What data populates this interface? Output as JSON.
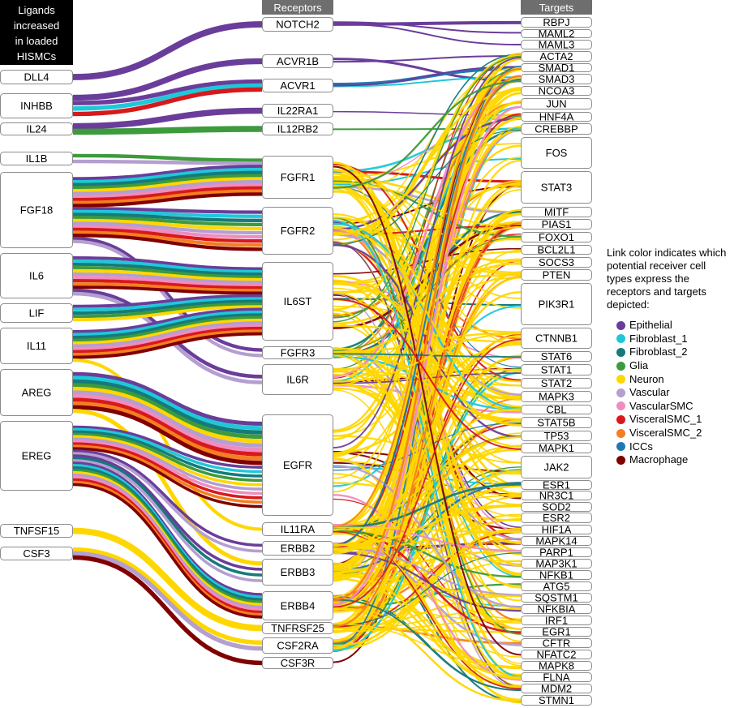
{
  "headers": {
    "ligands": [
      "Ligands",
      "increased",
      "in loaded",
      "HISMCs"
    ],
    "receptors": "Receptors",
    "targets": "Targets"
  },
  "legend": {
    "title": "Link color indicates which potential receiver cell types express the receptors and targets depicted:",
    "items": [
      {
        "label": "Epithelial",
        "color": "#6a3d9a"
      },
      {
        "label": "Fibroblast_1",
        "color": "#1fc8d8"
      },
      {
        "label": "Fibroblast_2",
        "color": "#167a7a"
      },
      {
        "label": "Glia",
        "color": "#3d9a3d"
      },
      {
        "label": "Neuron",
        "color": "#ffd700"
      },
      {
        "label": "Vascular",
        "color": "#b49fd0"
      },
      {
        "label": "VascularSMC",
        "color": "#f08cbf"
      },
      {
        "label": "VisceralSMC_1",
        "color": "#d7191c"
      },
      {
        "label": "VisceralSMC_2",
        "color": "#f47f20"
      },
      {
        "label": "ICCs",
        "color": "#1f78b4"
      },
      {
        "label": "Macrophage",
        "color": "#800000"
      }
    ]
  },
  "ligands": [
    "DLL4",
    "INHBB",
    "IL24",
    "IL1B",
    "FGF18",
    "IL6",
    "LIF",
    "IL11",
    "AREG",
    "EREG",
    "TNFSF15",
    "CSF3"
  ],
  "receptors": [
    "NOTCH2",
    "ACVR1B",
    "ACVR1",
    "IL22RA1",
    "IL12RB2",
    "FGFR1",
    "FGFR2",
    "IL6ST",
    "FGFR3",
    "IL6R",
    "EGFR",
    "IL11RA",
    "ERBB2",
    "ERBB3",
    "ERBB4",
    "TNFRSF25",
    "CSF2RA",
    "CSF3R"
  ],
  "targets": [
    "RBPJ",
    "MAML2",
    "MAML3",
    "ACTA2",
    "SMAD1",
    "SMAD3",
    "NCOA3",
    "JUN",
    "HNF4A",
    "CREBBP",
    "FOS",
    "STAT3",
    "MITF",
    "PIAS1",
    "FOXO1",
    "BCL2L1",
    "SOCS3",
    "PTEN",
    "PIK3R1",
    "CTNNB1",
    "STAT6",
    "STAT1",
    "STAT2",
    "MAPK3",
    "CBL",
    "STAT5B",
    "TP53",
    "MAPK1",
    "JAK2",
    "ESR1",
    "NR3C1",
    "SOD2",
    "ESR2",
    "HIF1A",
    "MAPK14",
    "PARP1",
    "MAP3K1",
    "NFKB1",
    "ATG5",
    "SQSTM1",
    "NFKBIA",
    "IRF1",
    "EGR1",
    "CFTR",
    "NFATC2",
    "MAPK8",
    "FLNA",
    "MDM2",
    "STMN1"
  ],
  "ligand_receptor_links": [
    {
      "from": "DLL4",
      "to": "NOTCH2",
      "types": [
        "Epithelial"
      ]
    },
    {
      "from": "INHBB",
      "to": "ACVR1B",
      "types": [
        "Epithelial"
      ]
    },
    {
      "from": "INHBB",
      "to": "ACVR1",
      "types": [
        "Epithelial",
        "Fibroblast_1",
        "VisceralSMC_1"
      ]
    },
    {
      "from": "IL24",
      "to": "IL22RA1",
      "types": [
        "Epithelial"
      ]
    },
    {
      "from": "IL24",
      "to": "IL12RB2",
      "types": [
        "Glia"
      ]
    },
    {
      "from": "IL1B",
      "to": "FGFR1",
      "types": [
        "Glia",
        "Vascular"
      ]
    },
    {
      "from": "FGF18",
      "to": "FGFR1",
      "types": [
        "Epithelial",
        "Fibroblast_1",
        "Fibroblast_2",
        "Glia",
        "Neuron",
        "Vascular",
        "VascularSMC",
        "VisceralSMC_1",
        "VisceralSMC_2",
        "Macrophage"
      ]
    },
    {
      "from": "FGF18",
      "to": "FGFR2",
      "types": [
        "Epithelial",
        "Fibroblast_1",
        "Fibroblast_2",
        "Glia",
        "Neuron",
        "Vascular",
        "VascularSMC",
        "VisceralSMC_1",
        "VisceralSMC_2",
        "Macrophage"
      ]
    },
    {
      "from": "FGF18",
      "to": "FGFR3",
      "types": [
        "Epithelial",
        "Vascular"
      ]
    },
    {
      "from": "IL6",
      "to": "IL6ST",
      "types": [
        "Epithelial",
        "Fibroblast_1",
        "Fibroblast_2",
        "Glia",
        "Neuron",
        "Vascular",
        "VascularSMC",
        "VisceralSMC_1",
        "VisceralSMC_2",
        "Macrophage"
      ]
    },
    {
      "from": "IL6",
      "to": "IL6R",
      "types": [
        "Epithelial",
        "Vascular"
      ]
    },
    {
      "from": "LIF",
      "to": "IL6ST",
      "types": [
        "Epithelial",
        "Fibroblast_1",
        "Fibroblast_2",
        "Glia",
        "Neuron"
      ]
    },
    {
      "from": "IL11",
      "to": "IL6ST",
      "types": [
        "Epithelial",
        "Fibroblast_1",
        "Fibroblast_2",
        "Glia",
        "Neuron",
        "Vascular",
        "VascularSMC",
        "VisceralSMC_1",
        "VisceralSMC_2",
        "Macrophage"
      ]
    },
    {
      "from": "IL11",
      "to": "IL11RA",
      "types": [
        "Neuron"
      ]
    },
    {
      "from": "AREG",
      "to": "EGFR",
      "types": [
        "Epithelial",
        "Fibroblast_1",
        "Fibroblast_2",
        "Glia",
        "Neuron",
        "Vascular",
        "VascularSMC",
        "VisceralSMC_1",
        "VisceralSMC_2",
        "Macrophage"
      ]
    },
    {
      "from": "AREG",
      "to": "ERBB3",
      "types": [
        "Neuron"
      ]
    },
    {
      "from": "EREG",
      "to": "EGFR",
      "types": [
        "Epithelial",
        "Fibroblast_1",
        "Fibroblast_2",
        "Glia",
        "Neuron",
        "Vascular",
        "VascularSMC",
        "VisceralSMC_1",
        "VisceralSMC_2",
        "Macrophage"
      ]
    },
    {
      "from": "EREG",
      "to": "ERBB2",
      "types": [
        "Epithelial",
        "Vascular"
      ]
    },
    {
      "from": "EREG",
      "to": "ERBB3",
      "types": [
        "Epithelial",
        "Fibroblast_2",
        "Vascular"
      ]
    },
    {
      "from": "EREG",
      "to": "ERBB4",
      "types": [
        "Epithelial",
        "Fibroblast_1",
        "Fibroblast_2",
        "Glia",
        "Neuron",
        "Vascular",
        "VascularSMC",
        "VisceralSMC_1",
        "VisceralSMC_2",
        "Macrophage"
      ]
    },
    {
      "from": "TNFSF15",
      "to": "TNFRSF25",
      "types": [
        "Neuron"
      ]
    },
    {
      "from": "CSF3",
      "to": "CSF2RA",
      "types": [
        "Neuron",
        "Vascular"
      ]
    },
    {
      "from": "CSF3",
      "to": "CSF3R",
      "types": [
        "Macrophage"
      ]
    }
  ]
}
